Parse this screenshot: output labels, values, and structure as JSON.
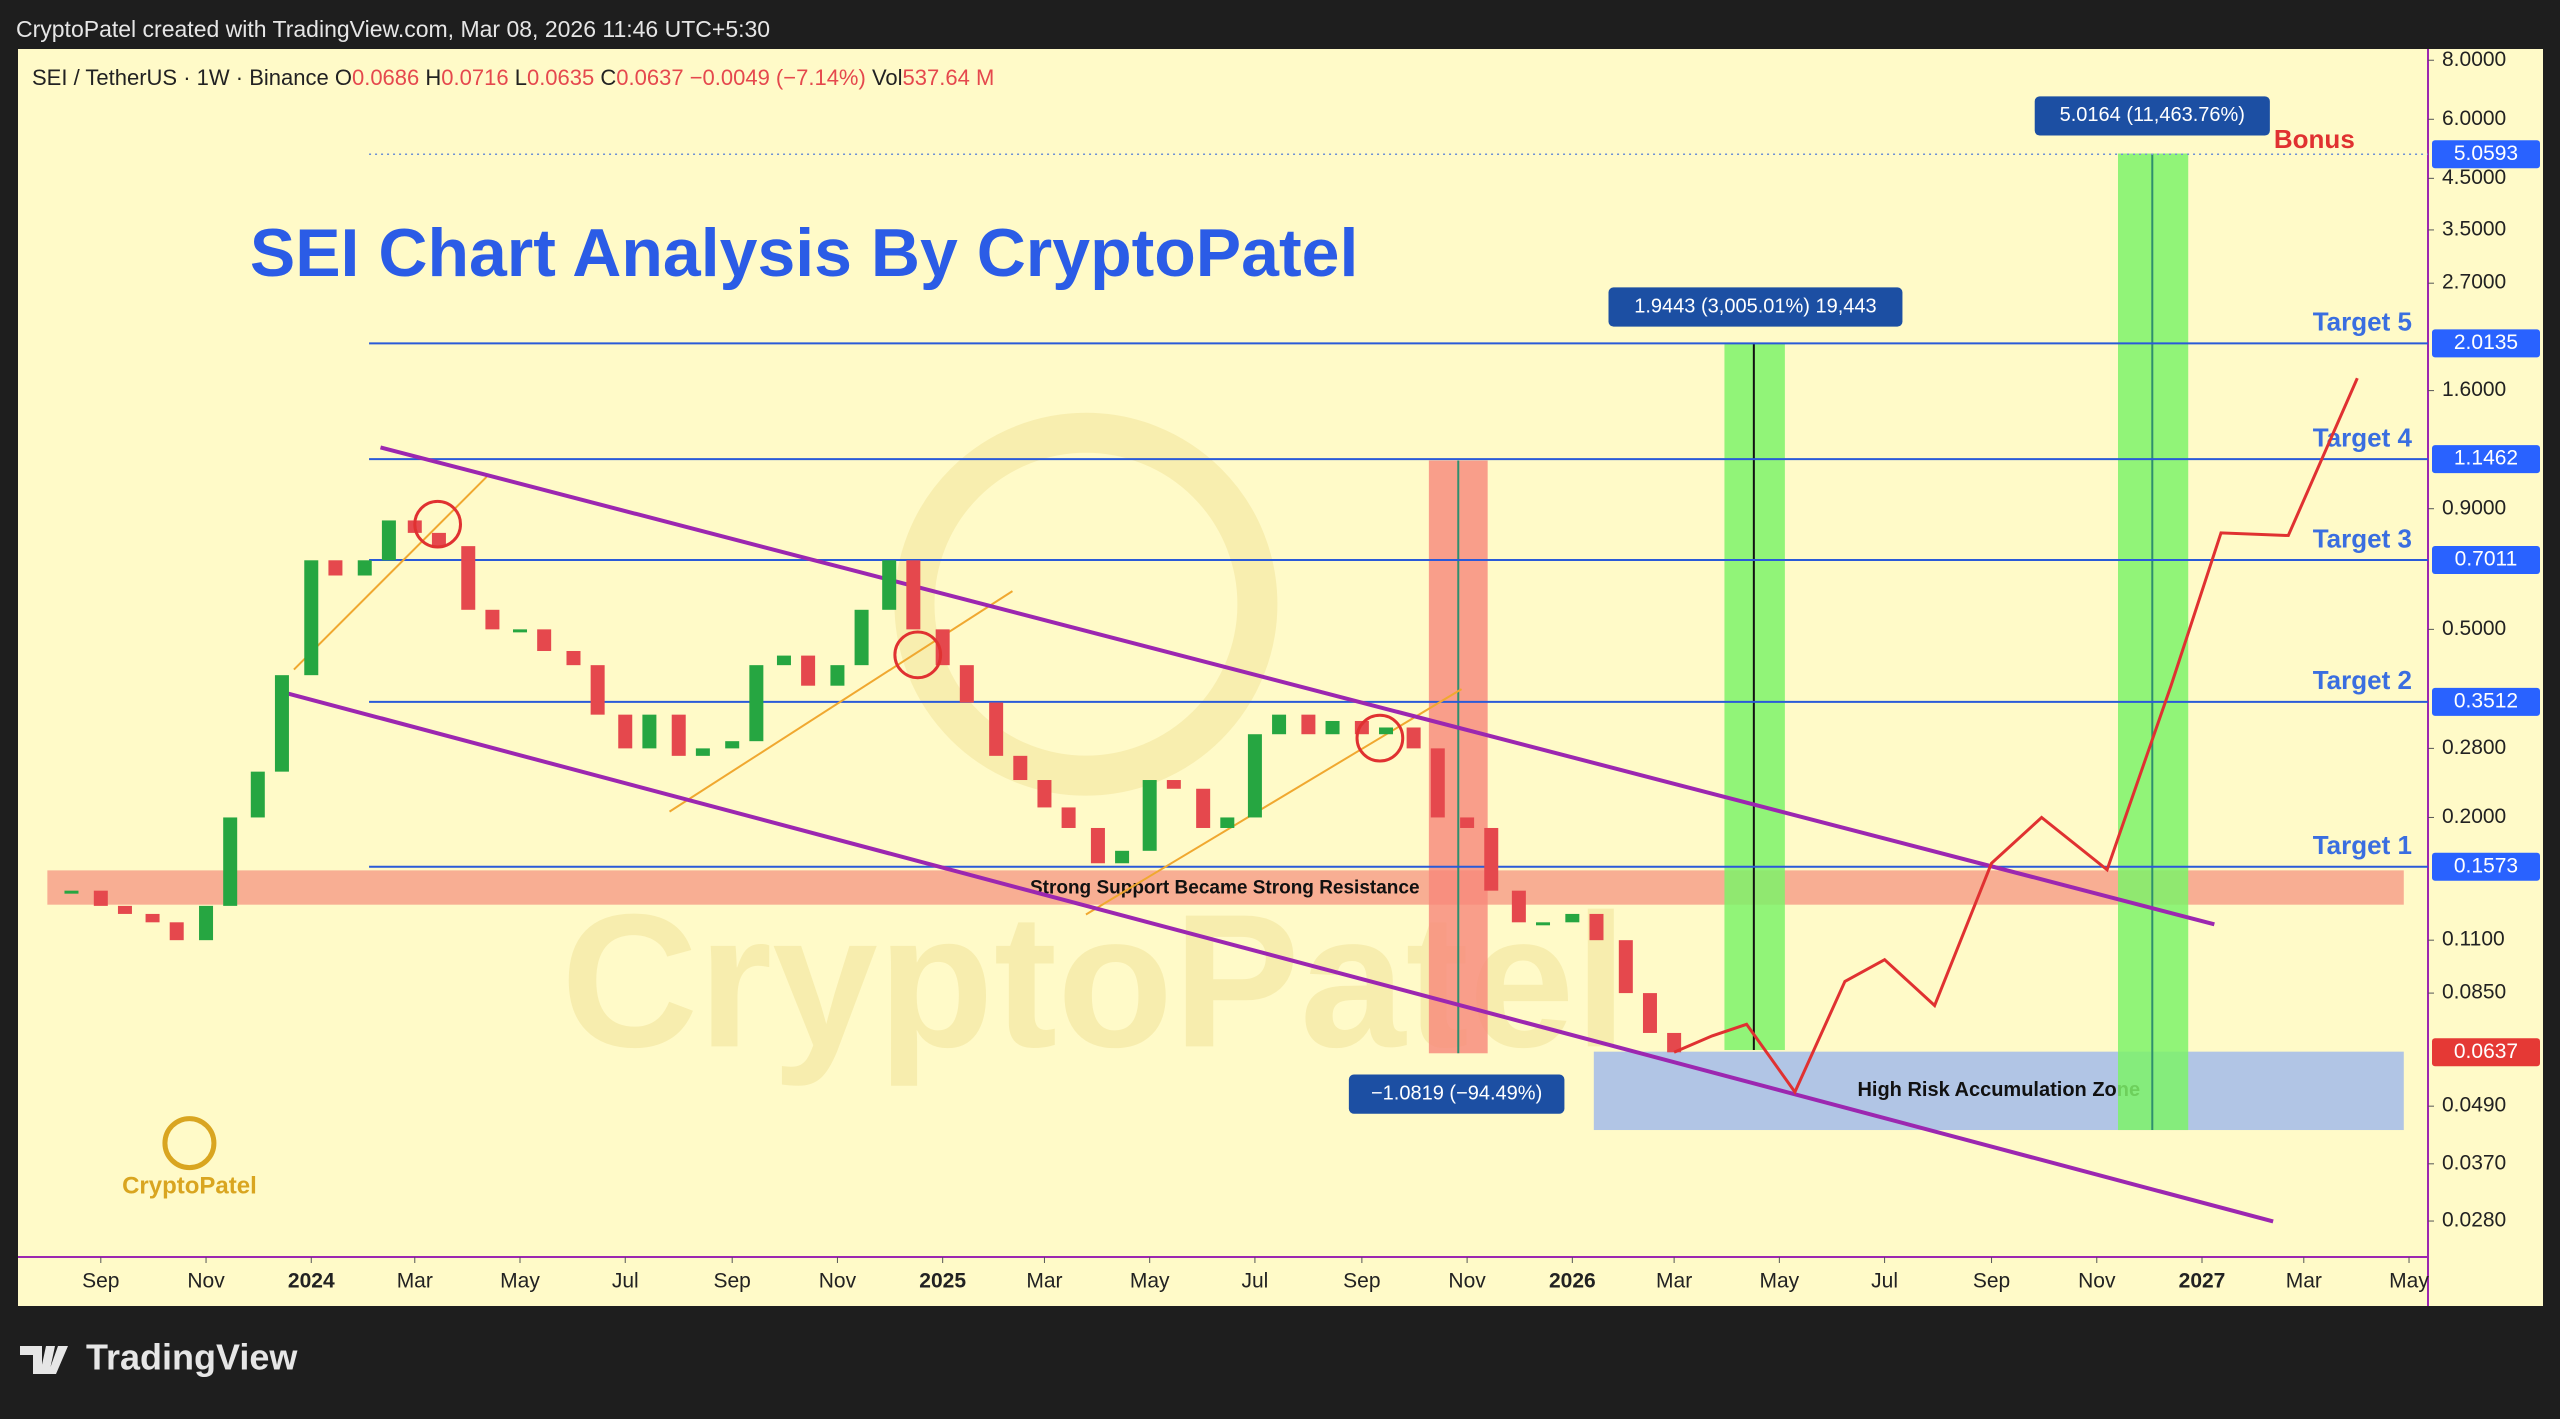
{
  "header": {
    "text": "CryptoPatel created with TradingView.com, Mar 08, 2026 11:46 UTC+5:30"
  },
  "footer": {
    "brand": "TradingView"
  },
  "chart_data": {
    "type": "candlestick",
    "title": "SEI Chart Analysis By CryptoPatel",
    "legend": {
      "symbol": "SEI / TetherUS · 1W · Binance",
      "o_label": "O",
      "open": 0.0686,
      "h_label": "H",
      "high": 0.0716,
      "l_label": "L",
      "low": 0.0635,
      "c_label": "C",
      "close": 0.0637,
      "change": "−0.0049 (−7.14%)",
      "vol_label": "Vol",
      "volume": "537.64 M"
    },
    "log_scale": true,
    "up_color": "#26a641",
    "down_color": "#e5484d",
    "xlim": [
      "2023-07-15",
      "2027-05-12"
    ],
    "ylim": [
      0.0235,
      8.45
    ],
    "yticks": [
      {
        "value": 8,
        "label": "8.0000"
      },
      {
        "value": 6,
        "label": "6.0000"
      },
      {
        "value": 4.5,
        "label": "4.5000"
      },
      {
        "value": 3.5,
        "label": "3.5000"
      },
      {
        "value": 2.7,
        "label": "2.7000"
      },
      {
        "value": 1.6,
        "label": "1.6000"
      },
      {
        "value": 0.9,
        "label": "0.9000"
      },
      {
        "value": 0.5,
        "label": "0.5000"
      },
      {
        "value": 0.28,
        "label": "0.2800"
      },
      {
        "value": 0.2,
        "label": "0.2000"
      },
      {
        "value": 0.11,
        "label": "0.1100"
      },
      {
        "value": 0.085,
        "label": "0.0850"
      },
      {
        "value": 0.049,
        "label": "0.0490"
      },
      {
        "value": 0.037,
        "label": "0.0370"
      },
      {
        "value": 0.028,
        "label": "0.0280"
      }
    ],
    "xticks": [
      {
        "value": "2023-09-01",
        "label": "Sep"
      },
      {
        "value": "2023-11-01",
        "label": "Nov"
      },
      {
        "value": "2024-01-01",
        "label": "2024"
      },
      {
        "value": "2024-03-01",
        "label": "Mar"
      },
      {
        "value": "2024-05-01",
        "label": "May"
      },
      {
        "value": "2024-07-01",
        "label": "Jul"
      },
      {
        "value": "2024-09-01",
        "label": "Sep"
      },
      {
        "value": "2024-11-01",
        "label": "Nov"
      },
      {
        "value": "2025-01-01",
        "label": "2025"
      },
      {
        "value": "2025-03-01",
        "label": "Mar"
      },
      {
        "value": "2025-05-01",
        "label": "May"
      },
      {
        "value": "2025-07-01",
        "label": "Jul"
      },
      {
        "value": "2025-09-01",
        "label": "Sep"
      },
      {
        "value": "2025-11-01",
        "label": "Nov"
      },
      {
        "value": "2026-01-01",
        "label": "2026"
      },
      {
        "value": "2026-03-01",
        "label": "Mar"
      },
      {
        "value": "2026-05-01",
        "label": "May"
      },
      {
        "value": "2026-07-01",
        "label": "Jul"
      },
      {
        "value": "2026-09-01",
        "label": "Sep"
      },
      {
        "value": "2026-11-01",
        "label": "Nov"
      },
      {
        "value": "2027-01-01",
        "label": "2027"
      },
      {
        "value": "2027-03-01",
        "label": "Mar"
      },
      {
        "value": "2027-05-01",
        "label": "May"
      }
    ],
    "x": [
      "2023-08-15",
      "2023-09-01",
      "2023-09-15",
      "2023-10-01",
      "2023-10-15",
      "2023-11-01",
      "2023-11-15",
      "2023-12-01",
      "2023-12-15",
      "2024-01-01",
      "2024-01-15",
      "2024-02-01",
      "2024-02-15",
      "2024-03-01",
      "2024-03-15",
      "2024-04-01",
      "2024-04-15",
      "2024-05-01",
      "2024-05-15",
      "2024-06-01",
      "2024-06-15",
      "2024-07-01",
      "2024-07-15",
      "2024-08-01",
      "2024-08-15",
      "2024-09-01",
      "2024-09-15",
      "2024-10-01",
      "2024-10-15",
      "2024-11-01",
      "2024-11-15",
      "2024-12-01",
      "2024-12-15",
      "2025-01-01",
      "2025-01-15",
      "2025-02-01",
      "2025-02-15",
      "2025-03-01",
      "2025-03-15",
      "2025-04-01",
      "2025-04-15",
      "2025-05-01",
      "2025-05-15",
      "2025-06-01",
      "2025-06-15",
      "2025-07-01",
      "2025-07-15",
      "2025-08-01",
      "2025-08-15",
      "2025-09-01",
      "2025-09-15",
      "2025-10-01",
      "2025-10-15",
      "2025-11-01",
      "2025-11-15",
      "2025-12-01",
      "2025-12-15",
      "2026-01-01",
      "2026-01-15",
      "2026-02-01",
      "2026-02-15",
      "2026-03-01"
    ],
    "values": [
      0.14,
      0.13,
      0.125,
      0.12,
      0.11,
      0.13,
      0.2,
      0.25,
      0.4,
      0.7,
      0.65,
      0.7,
      0.85,
      0.8,
      0.75,
      0.55,
      0.5,
      0.5,
      0.45,
      0.42,
      0.33,
      0.28,
      0.33,
      0.27,
      0.28,
      0.29,
      0.42,
      0.44,
      0.38,
      0.42,
      0.55,
      0.7,
      0.5,
      0.42,
      0.35,
      0.27,
      0.24,
      0.21,
      0.19,
      0.16,
      0.17,
      0.24,
      0.23,
      0.19,
      0.2,
      0.3,
      0.33,
      0.3,
      0.32,
      0.3,
      0.31,
      0.28,
      0.2,
      0.19,
      0.14,
      0.12,
      0.12,
      0.125,
      0.11,
      0.085,
      0.07,
      0.0637
    ],
    "projection": {
      "color": "#e03131",
      "x": [
        "2026-03-01",
        "2026-03-23",
        "2026-04-12",
        "2026-05-10",
        "2026-06-08",
        "2026-07-01",
        "2026-07-30",
        "2026-09-01",
        "2026-09-30",
        "2026-11-07",
        "2026-12-14",
        "2027-01-12",
        "2027-02-20",
        "2027-04-01"
      ],
      "values": [
        0.0637,
        0.069,
        0.073,
        0.0525,
        0.09,
        0.1,
        0.08,
        0.16,
        0.2,
        0.155,
        0.38,
        0.8,
        0.79,
        1.7
      ]
    },
    "levels": [
      {
        "name": "Bonus",
        "price": {
          "value": 5.0593,
          "label": "5.0593"
        }
      },
      {
        "name": "Target 5",
        "price": {
          "value": 2.0135,
          "label": "2.0135"
        }
      },
      {
        "name": "Target 4",
        "price": {
          "value": 1.1462,
          "label": "1.1462"
        }
      },
      {
        "name": "Target 3",
        "price": {
          "value": 0.7011,
          "label": "0.7011"
        }
      },
      {
        "name": "Target 2",
        "price": {
          "value": 0.3512,
          "label": "0.3512"
        }
      },
      {
        "name": "Target 1",
        "price": {
          "value": 0.1573,
          "label": "0.1573"
        }
      }
    ],
    "last_price": {
      "value": 0.0637,
      "label": "0.0637"
    },
    "annotations": {
      "support_zone": "Strong Support Became Strong Resistance",
      "accumulation_zone": "High Risk Accumulation Zone",
      "drop": "−1.0819 (−94.49%)",
      "rise1": "1.9443 (3,005.01%) 19,443",
      "rise2": "5.0164 (11,463.76%)"
    },
    "watermark": "CryptoPatel",
    "logo_text": "CryptoPatel"
  }
}
